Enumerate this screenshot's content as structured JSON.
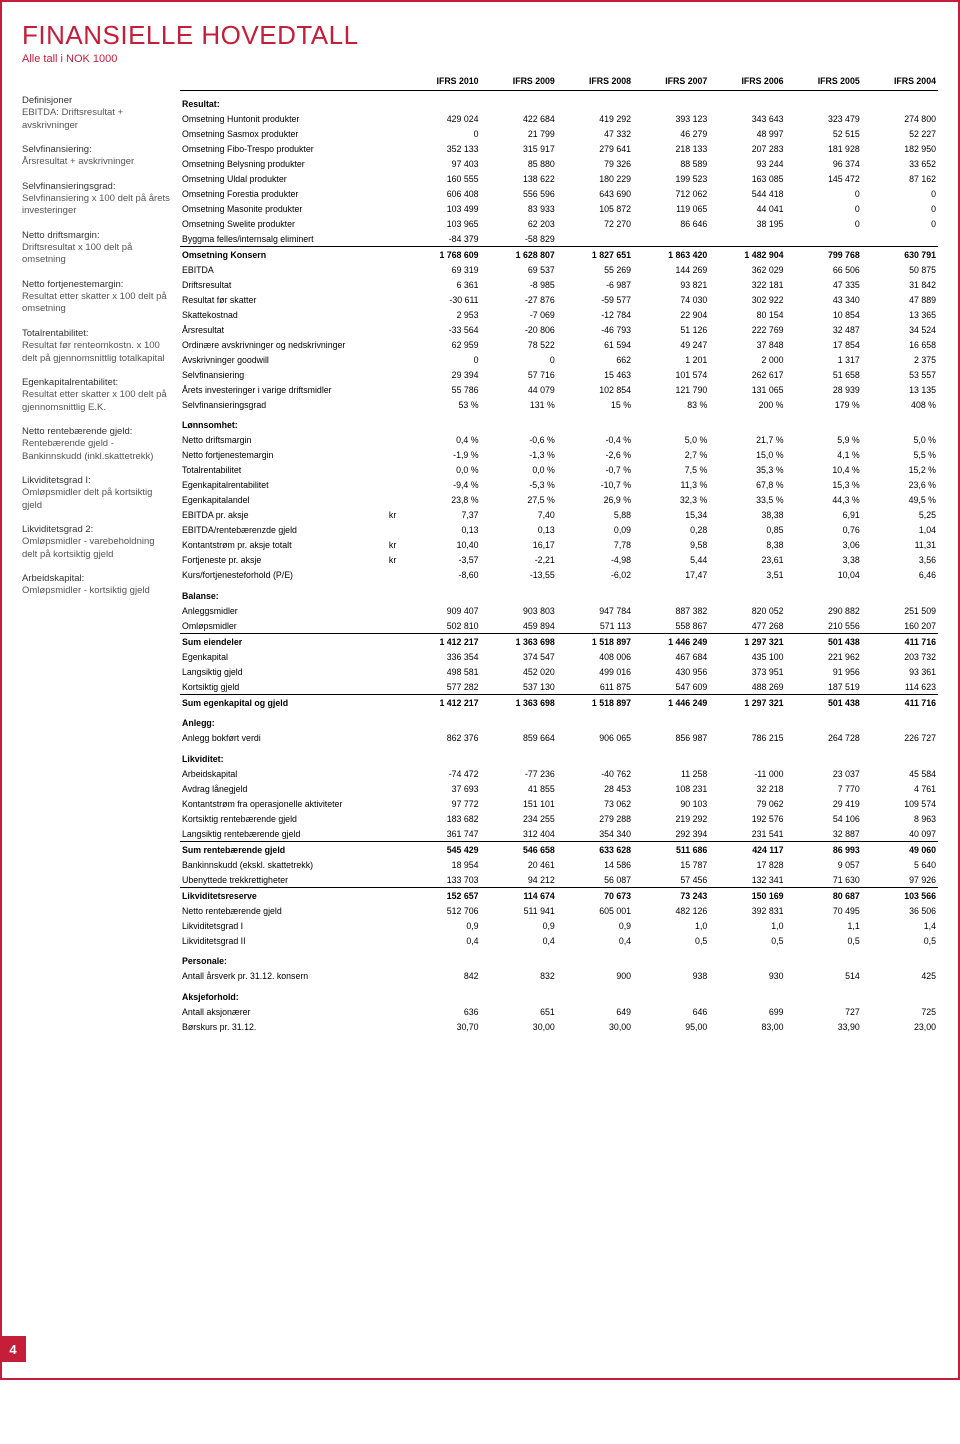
{
  "page_number": "4",
  "title": "FINANSIELLE HOVEDTALL",
  "subtitle": "Alle tall i NOK 1000",
  "colors": {
    "accent": "#c41e3a",
    "text": "#000000",
    "bg": "#ffffff"
  },
  "columns": [
    "IFRS 2010",
    "IFRS 2009",
    "IFRS 2008",
    "IFRS 2007",
    "IFRS 2006",
    "IFRS 2005",
    "IFRS 2004"
  ],
  "definitions": [
    {
      "term": "Definisjoner",
      "body": "EBITDA: Driftsresultat + avskrivninger"
    },
    {
      "term": "Selvfinansiering:",
      "body": "Årsresultat + avskrivninger"
    },
    {
      "term": "Selvfinansieringsgrad:",
      "body": "Selvfinansiering x 100 delt på årets investeringer"
    },
    {
      "term": "Netto driftsmargin:",
      "body": "Driftsresultat x 100 delt på omsetning"
    },
    {
      "term": "Netto fortjenestemargin:",
      "body": "Resultat etter skatter x 100 delt på omsetning"
    },
    {
      "term": "Totalrentabilitet:",
      "body": "Resultat før renteomkostn. x 100 delt på gjennomsnittlig totalkapital"
    },
    {
      "term": "Egenkapitalrentabilitet:",
      "body": "Resultat etter skatter x 100 delt på gjennomsnittlig E.K."
    },
    {
      "term": "Netto rentebærende gjeld:",
      "body": "Rentebærende gjeld - Bankinnskudd (inkl.skattetrekk)"
    },
    {
      "term": "Likviditetsgrad I:",
      "body": "Omløpsmidler delt på kortsiktig gjeld"
    },
    {
      "term": "Likviditetsgrad 2:",
      "body": "Omløpsmidler - varebeholdning delt på kortsiktig gjeld"
    },
    {
      "term": "Arbeidskapital:",
      "body": "Omløpsmidler - kortsiktig gjeld"
    }
  ],
  "sections": [
    {
      "heading": "Resultat:",
      "rows": [
        {
          "label": "Omsetning Huntonit produkter",
          "v": [
            "429 024",
            "422 684",
            "419 292",
            "393 123",
            "343 643",
            "323 479",
            "274 800"
          ]
        },
        {
          "label": "Omsetning Sasmox produkter",
          "v": [
            "0",
            "21 799",
            "47 332",
            "46 279",
            "48 997",
            "52 515",
            "52 227"
          ]
        },
        {
          "label": "Omsetning Fibo-Trespo produkter",
          "v": [
            "352 133",
            "315 917",
            "279 641",
            "218 133",
            "207 283",
            "181 928",
            "182 950"
          ]
        },
        {
          "label": "Omsetning Belysning produkter",
          "v": [
            "97 403",
            "85 880",
            "79 326",
            "88 589",
            "93 244",
            "96 374",
            "33 652"
          ]
        },
        {
          "label": "Omsetning Uldal produkter",
          "v": [
            "160 555",
            "138 622",
            "180 229",
            "199 523",
            "163 085",
            "145 472",
            "87 162"
          ]
        },
        {
          "label": "Omsetning Forestia produkter",
          "v": [
            "606 408",
            "556 596",
            "643 690",
            "712 062",
            "544 418",
            "0",
            "0"
          ]
        },
        {
          "label": "Omsetning Masonite produkter",
          "v": [
            "103 499",
            "83 933",
            "105 872",
            "119 065",
            "44 041",
            "0",
            "0"
          ]
        },
        {
          "label": "Omsetning Swelite produkter",
          "v": [
            "103 965",
            "62 203",
            "72 270",
            "86 646",
            "38 195",
            "0",
            "0"
          ]
        },
        {
          "label": "Byggma felles/internsalg eliminert",
          "v": [
            "-84 379",
            "-58 829",
            "",
            "",
            "",
            "",
            ""
          ]
        },
        {
          "label": "Omsetning Konsern",
          "bold": true,
          "topline": true,
          "v": [
            "1 768 609",
            "1 628 807",
            "1 827 651",
            "1 863 420",
            "1 482 904",
            "799 768",
            "630 791"
          ]
        },
        {
          "label": "EBITDA",
          "v": [
            "69 319",
            "69 537",
            "55 269",
            "144 269",
            "362 029",
            "66 506",
            "50 875"
          ]
        },
        {
          "label": "Driftsresultat",
          "v": [
            "6 361",
            "-8 985",
            "-6 987",
            "93 821",
            "322 181",
            "47 335",
            "31 842"
          ]
        },
        {
          "label": "Resultat før skatter",
          "v": [
            "-30 611",
            "-27 876",
            "-59 577",
            "74 030",
            "302 922",
            "43 340",
            "47 889"
          ]
        },
        {
          "label": "Skattekostnad",
          "v": [
            "2 953",
            "-7 069",
            "-12 784",
            "22 904",
            "80 154",
            "10 854",
            "13 365"
          ]
        },
        {
          "label": "Årsresultat",
          "v": [
            "-33 564",
            "-20 806",
            "-46 793",
            "51 126",
            "222 769",
            "32 487",
            "34 524"
          ]
        },
        {
          "label": "Ordinære avskrivninger og nedskrivninger",
          "v": [
            "62 959",
            "78 522",
            "61 594",
            "49 247",
            "37 848",
            "17 854",
            "16 658"
          ]
        },
        {
          "label": "Avskrivninger goodwill",
          "v": [
            "0",
            "0",
            "662",
            "1 201",
            "2 000",
            "1 317",
            "2 375"
          ]
        },
        {
          "label": "Selvfinansiering",
          "v": [
            "29 394",
            "57 716",
            "15 463",
            "101 574",
            "262 617",
            "51 658",
            "53 557"
          ]
        },
        {
          "label": "Årets investeringer i varige driftsmidler",
          "v": [
            "55 786",
            "44 079",
            "102 854",
            "121 790",
            "131 065",
            "28 939",
            "13 135"
          ]
        },
        {
          "label": "Selvfinansieringsgrad",
          "v": [
            "53 %",
            "131 %",
            "15 %",
            "83 %",
            "200 %",
            "179 %",
            "408 %"
          ]
        }
      ]
    },
    {
      "heading": "Lønnsomhet:",
      "rows": [
        {
          "label": "Netto driftsmargin",
          "v": [
            "0,4 %",
            "-0,6 %",
            "-0,4 %",
            "5,0 %",
            "21,7 %",
            "5,9 %",
            "5,0 %"
          ]
        },
        {
          "label": "Netto fortjenestemargin",
          "v": [
            "-1,9 %",
            "-1,3 %",
            "-2,6 %",
            "2,7 %",
            "15,0 %",
            "4,1 %",
            "5,5 %"
          ]
        },
        {
          "label": "Totalrentabilitet",
          "v": [
            "0,0 %",
            "0,0 %",
            "-0,7 %",
            "7,5 %",
            "35,3 %",
            "10,4 %",
            "15,2 %"
          ]
        },
        {
          "label": "Egenkapitalrentabilitet",
          "v": [
            "-9,4 %",
            "-5,3 %",
            "-10,7 %",
            "11,3 %",
            "67,8 %",
            "15,3 %",
            "23,6 %"
          ]
        },
        {
          "label": "Egenkapitalandel",
          "v": [
            "23,8 %",
            "27,5 %",
            "26,9 %",
            "32,3 %",
            "33,5 %",
            "44,3 %",
            "49,5 %"
          ]
        },
        {
          "label": "EBITDA pr. aksje",
          "unit": "kr",
          "v": [
            "7,37",
            "7,40",
            "5,88",
            "15,34",
            "38,38",
            "6,91",
            "5,25"
          ]
        },
        {
          "label": "EBITDA/rentebærenzde gjeld",
          "v": [
            "0,13",
            "0,13",
            "0,09",
            "0,28",
            "0,85",
            "0,76",
            "1,04"
          ]
        },
        {
          "label": "Kontantstrøm pr. aksje totalt",
          "unit": "kr",
          "v": [
            "10,40",
            "16,17",
            "7,78",
            "9,58",
            "8,38",
            "3,06",
            "11,31"
          ]
        },
        {
          "label": "Fortjeneste pr. aksje",
          "unit": "kr",
          "v": [
            "-3,57",
            "-2,21",
            "-4,98",
            "5,44",
            "23,61",
            "3,38",
            "3,56"
          ]
        },
        {
          "label": "Kurs/fortjenesteforhold (P/E)",
          "v": [
            "-8,60",
            "-13,55",
            "-6,02",
            "17,47",
            "3,51",
            "10,04",
            "6,46"
          ]
        }
      ]
    },
    {
      "heading": "Balanse:",
      "rows": [
        {
          "label": "Anleggsmidler",
          "v": [
            "909 407",
            "903 803",
            "947 784",
            "887 382",
            "820 052",
            "290 882",
            "251 509"
          ]
        },
        {
          "label": "Omløpsmidler",
          "v": [
            "502 810",
            "459 894",
            "571 113",
            "558 867",
            "477 268",
            "210 556",
            "160 207"
          ]
        },
        {
          "label": "Sum eiendeler",
          "bold": true,
          "topline": true,
          "v": [
            "1 412 217",
            "1 363 698",
            "1 518 897",
            "1 446 249",
            "1 297 321",
            "501 438",
            "411 716"
          ]
        },
        {
          "label": "Egenkapital",
          "v": [
            "336 354",
            "374 547",
            "408 006",
            "467 684",
            "435 100",
            "221 962",
            "203 732"
          ]
        },
        {
          "label": "Langsiktig gjeld",
          "v": [
            "498 581",
            "452 020",
            "499 016",
            "430 956",
            "373 951",
            "91 956",
            "93 361"
          ]
        },
        {
          "label": "Kortsiktig gjeld",
          "v": [
            "577 282",
            "537 130",
            "611 875",
            "547 609",
            "488 269",
            "187 519",
            "114 623"
          ]
        },
        {
          "label": "Sum egenkapital og gjeld",
          "bold": true,
          "topline": true,
          "v": [
            "1 412 217",
            "1 363 698",
            "1 518 897",
            "1 446 249",
            "1 297 321",
            "501 438",
            "411 716"
          ]
        }
      ]
    },
    {
      "heading": "Anlegg:",
      "rows": [
        {
          "label": "Anlegg bokført verdi",
          "v": [
            "862 376",
            "859 664",
            "906 065",
            "856 987",
            "786 215",
            "264 728",
            "226 727"
          ]
        }
      ]
    },
    {
      "heading": "Likviditet:",
      "rows": [
        {
          "label": "Arbeidskapital",
          "v": [
            "-74 472",
            "-77 236",
            "-40 762",
            "11 258",
            "-11 000",
            "23 037",
            "45 584"
          ]
        },
        {
          "label": "Avdrag lånegjeld",
          "v": [
            "37 693",
            "41 855",
            "28 453",
            "108 231",
            "32 218",
            "7 770",
            "4 761"
          ]
        },
        {
          "label": "Kontantstrøm fra operasjonelle aktiviteter",
          "v": [
            "97 772",
            "151 101",
            "73 062",
            "90 103",
            "79 062",
            "29 419",
            "109 574"
          ]
        },
        {
          "label": "Kortsiktig rentebærende gjeld",
          "v": [
            "183 682",
            "234 255",
            "279 288",
            "219 292",
            "192 576",
            "54 106",
            "8 963"
          ]
        },
        {
          "label": "Langsiktig rentebærende gjeld",
          "v": [
            "361 747",
            "312 404",
            "354 340",
            "292 394",
            "231 541",
            "32 887",
            "40 097"
          ]
        },
        {
          "label": "Sum rentebærende gjeld",
          "bold": true,
          "topline": true,
          "v": [
            "545 429",
            "546 658",
            "633 628",
            "511 686",
            "424 117",
            "86 993",
            "49 060"
          ]
        },
        {
          "label": "Bankinnskudd (ekskl. skattetrekk)",
          "v": [
            "18 954",
            "20 461",
            "14 586",
            "15 787",
            "17 828",
            "9 057",
            "5 640"
          ]
        },
        {
          "label": "Ubenyttede trekkrettigheter",
          "v": [
            "133 703",
            "94 212",
            "56 087",
            "57 456",
            "132 341",
            "71 630",
            "97 926"
          ]
        },
        {
          "label": "Likviditetsreserve",
          "bold": true,
          "topline": true,
          "v": [
            "152 657",
            "114 674",
            "70 673",
            "73 243",
            "150 169",
            "80 687",
            "103 566"
          ]
        },
        {
          "label": "Netto rentebærende gjeld",
          "v": [
            "512 706",
            "511 941",
            "605 001",
            "482 126",
            "392 831",
            "70 495",
            "36 506"
          ]
        },
        {
          "label": "Likviditetsgrad I",
          "v": [
            "0,9",
            "0,9",
            "0,9",
            "1,0",
            "1,0",
            "1,1",
            "1,4"
          ]
        },
        {
          "label": "Likviditetsgrad II",
          "v": [
            "0,4",
            "0,4",
            "0,4",
            "0,5",
            "0,5",
            "0,5",
            "0,5"
          ]
        }
      ]
    },
    {
      "heading": "Personale:",
      "rows": [
        {
          "label": "Antall årsverk pr. 31.12. konsern",
          "v": [
            "842",
            "832",
            "900",
            "938",
            "930",
            "514",
            "425"
          ]
        }
      ]
    },
    {
      "heading": "Aksjeforhold:",
      "rows": [
        {
          "label": "Antall aksjonærer",
          "v": [
            "636",
            "651",
            "649",
            "646",
            "699",
            "727",
            "725"
          ]
        },
        {
          "label": "Børskurs pr. 31.12.",
          "v": [
            "30,70",
            "30,00",
            "30,00",
            "95,00",
            "83,00",
            "33,90",
            "23,00"
          ]
        }
      ]
    }
  ]
}
